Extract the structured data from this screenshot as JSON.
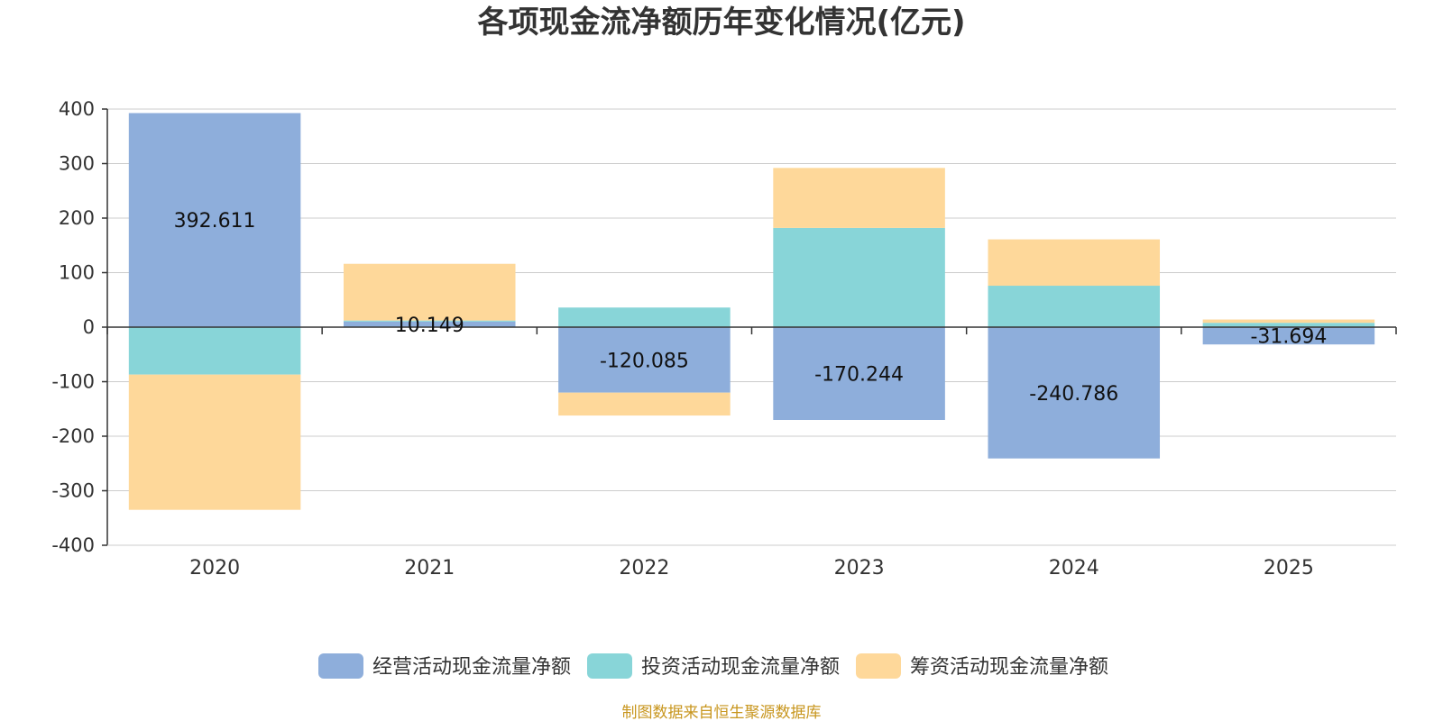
{
  "chart_data": {
    "type": "bar",
    "stacked": true,
    "title": "各项现金流净额历年变化情况(亿元)",
    "categories": [
      "2020",
      "2021",
      "2022",
      "2023",
      "2024",
      "2025"
    ],
    "ylim": [
      -400,
      400
    ],
    "yticks": [
      400,
      300,
      200,
      100,
      0,
      -100,
      -200,
      -300,
      -400
    ],
    "series": [
      {
        "name": "经营活动现金流量净额",
        "color": "#8eaedb",
        "values": [
          392.611,
          10.149,
          -120.085,
          -170.244,
          -240.786,
          -31.694
        ],
        "labels": [
          "392.611",
          "10.149",
          "-120.085",
          "-170.244",
          "-240.786",
          "-31.694"
        ]
      },
      {
        "name": "投资活动现金流量净额",
        "color": "#88d5d8",
        "values": [
          -87,
          2,
          36,
          182,
          76,
          8
        ]
      },
      {
        "name": "筹资活动现金流量净额",
        "color": "#fed89a",
        "values": [
          -248,
          104,
          -42,
          110,
          85,
          6
        ]
      }
    ],
    "legend_position": "bottom",
    "grid": true
  },
  "source": "制图数据来自恒生聚源数据库"
}
